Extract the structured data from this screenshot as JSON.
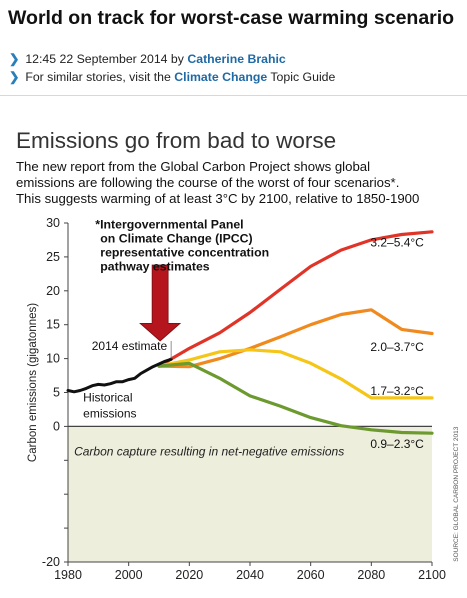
{
  "article": {
    "headline": "World on track for worst-case warming scenario",
    "byline_prefix": "12:45 22 September 2014 by ",
    "author": "Catherine Brahic",
    "topic_prefix": "For similar stories, visit the ",
    "topic_link": "Climate Change",
    "topic_suffix": " Topic Guide"
  },
  "chart_data": {
    "type": "line",
    "title": "Emissions go from bad to worse",
    "subtitle_lines": [
      "The new report from the Global Carbon Project shows global",
      "emissions are following the course of the worst of four scenarios*.",
      "This suggests warming of at least 3°C by 2100, relative to 1850-1900"
    ],
    "xlabel": "",
    "ylabel": "Carbon emissions (gigatonnes)",
    "xlim": [
      1980,
      2100
    ],
    "ylim": [
      -20,
      30
    ],
    "xticks": [
      1980,
      2000,
      2020,
      2040,
      2060,
      2080,
      2100
    ],
    "yticks": [
      -20,
      -15,
      -10,
      -5,
      0,
      5,
      10,
      15,
      20,
      25,
      30
    ],
    "ytick_labels": [
      "-20",
      "",
      "",
      "",
      "0",
      "5",
      "10",
      "15",
      "20",
      "25",
      "30"
    ],
    "historical": {
      "name": "Historical emissions",
      "label_lines": [
        "Historical",
        "emissions"
      ],
      "color": "#111111",
      "x": [
        1980,
        1982,
        1984,
        1986,
        1988,
        1990,
        1992,
        1994,
        1996,
        1998,
        2000,
        2002,
        2004,
        2006,
        2008,
        2010,
        2012,
        2014
      ],
      "y": [
        5.3,
        5.1,
        5.3,
        5.6,
        6.0,
        6.2,
        6.1,
        6.3,
        6.6,
        6.6,
        6.9,
        7.1,
        7.8,
        8.3,
        8.8,
        9.2,
        9.6,
        9.9
      ]
    },
    "series": [
      {
        "name": "3.2–5.4°C",
        "color": "#e03428",
        "x": [
          2010,
          2020,
          2030,
          2040,
          2050,
          2060,
          2070,
          2080,
          2090,
          2100
        ],
        "y": [
          8.9,
          11.5,
          13.8,
          16.8,
          20.2,
          23.6,
          26.0,
          27.5,
          28.3,
          28.7
        ]
      },
      {
        "name": "2.0–3.7°C",
        "color": "#f08a1e",
        "x": [
          2010,
          2020,
          2030,
          2040,
          2050,
          2060,
          2070,
          2080,
          2090,
          2100
        ],
        "y": [
          8.9,
          8.8,
          10.0,
          11.5,
          13.2,
          15.0,
          16.5,
          17.2,
          14.3,
          13.7
        ]
      },
      {
        "name": "1.7–3.2°C",
        "color": "#f5c518",
        "x": [
          2010,
          2020,
          2030,
          2040,
          2050,
          2060,
          2070,
          2080,
          2090,
          2100
        ],
        "y": [
          8.9,
          9.8,
          11.0,
          11.3,
          11.0,
          9.3,
          7.0,
          4.2,
          4.2,
          4.2
        ]
      },
      {
        "name": "0.9–2.3°C",
        "color": "#6c9a2f",
        "x": [
          2010,
          2020,
          2030,
          2040,
          2050,
          2060,
          2070,
          2080,
          2090,
          2100
        ],
        "y": [
          8.9,
          9.3,
          7.1,
          4.5,
          3.0,
          1.3,
          0.1,
          -0.5,
          -0.9,
          -1.0
        ]
      }
    ],
    "annotations": {
      "estimate_2014": "2014 estimate",
      "ipcc_lines": [
        "*Intergovernmental Panel",
        "on Climate Change (IPCC)",
        "representative concentration",
        "pathway estimates"
      ],
      "negative_region": "Carbon capture resulting in net-negative emissions",
      "source": "SOURCE: GLOBAL CARBON PROJECT 2013"
    },
    "colors": {
      "arrow": "#b5151c",
      "negative_band": "#eeeedd"
    },
    "grid": false,
    "legend": "direct labels"
  }
}
